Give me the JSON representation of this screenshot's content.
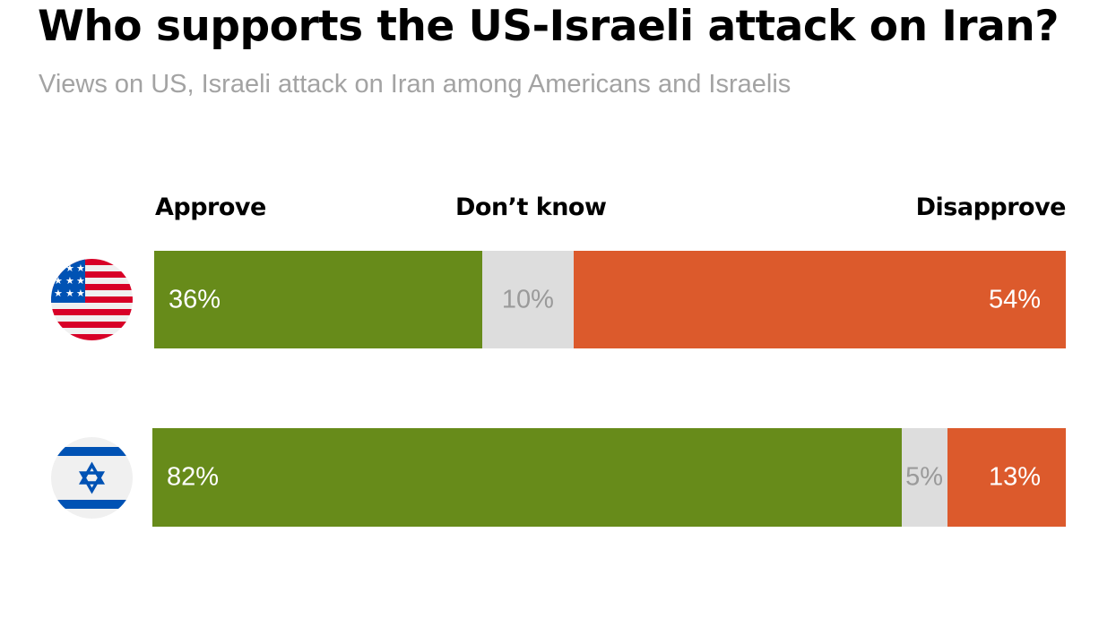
{
  "title": "Who supports the US-Israeli attack on Iran?",
  "subtitle": "Views on US, Israeli attack on Iran among Americans and Israelis",
  "chart_data": {
    "type": "bar",
    "orientation": "horizontal",
    "stacked": true,
    "categories": [
      "United States",
      "Israel"
    ],
    "category_icons": [
      "us-flag-icon",
      "israel-flag-icon"
    ],
    "series": [
      {
        "name": "Approve",
        "values": [
          36,
          82
        ],
        "color": "#678b1a",
        "label_color": "#6e8b5b"
      },
      {
        "name": "Don’t know",
        "values": [
          10,
          5
        ],
        "color": "#dddddd",
        "label_color": "#a0a0a0"
      },
      {
        "name": "Disapprove",
        "values": [
          54,
          13
        ],
        "color": "#dc5a2c",
        "label_color": "#e2855c"
      }
    ],
    "data_labels": [
      [
        "36%",
        "10%",
        "54%"
      ],
      [
        "82%",
        "5%",
        "13%"
      ]
    ],
    "xlim": [
      0,
      100
    ],
    "legend_placement": "top",
    "grid": false
  }
}
